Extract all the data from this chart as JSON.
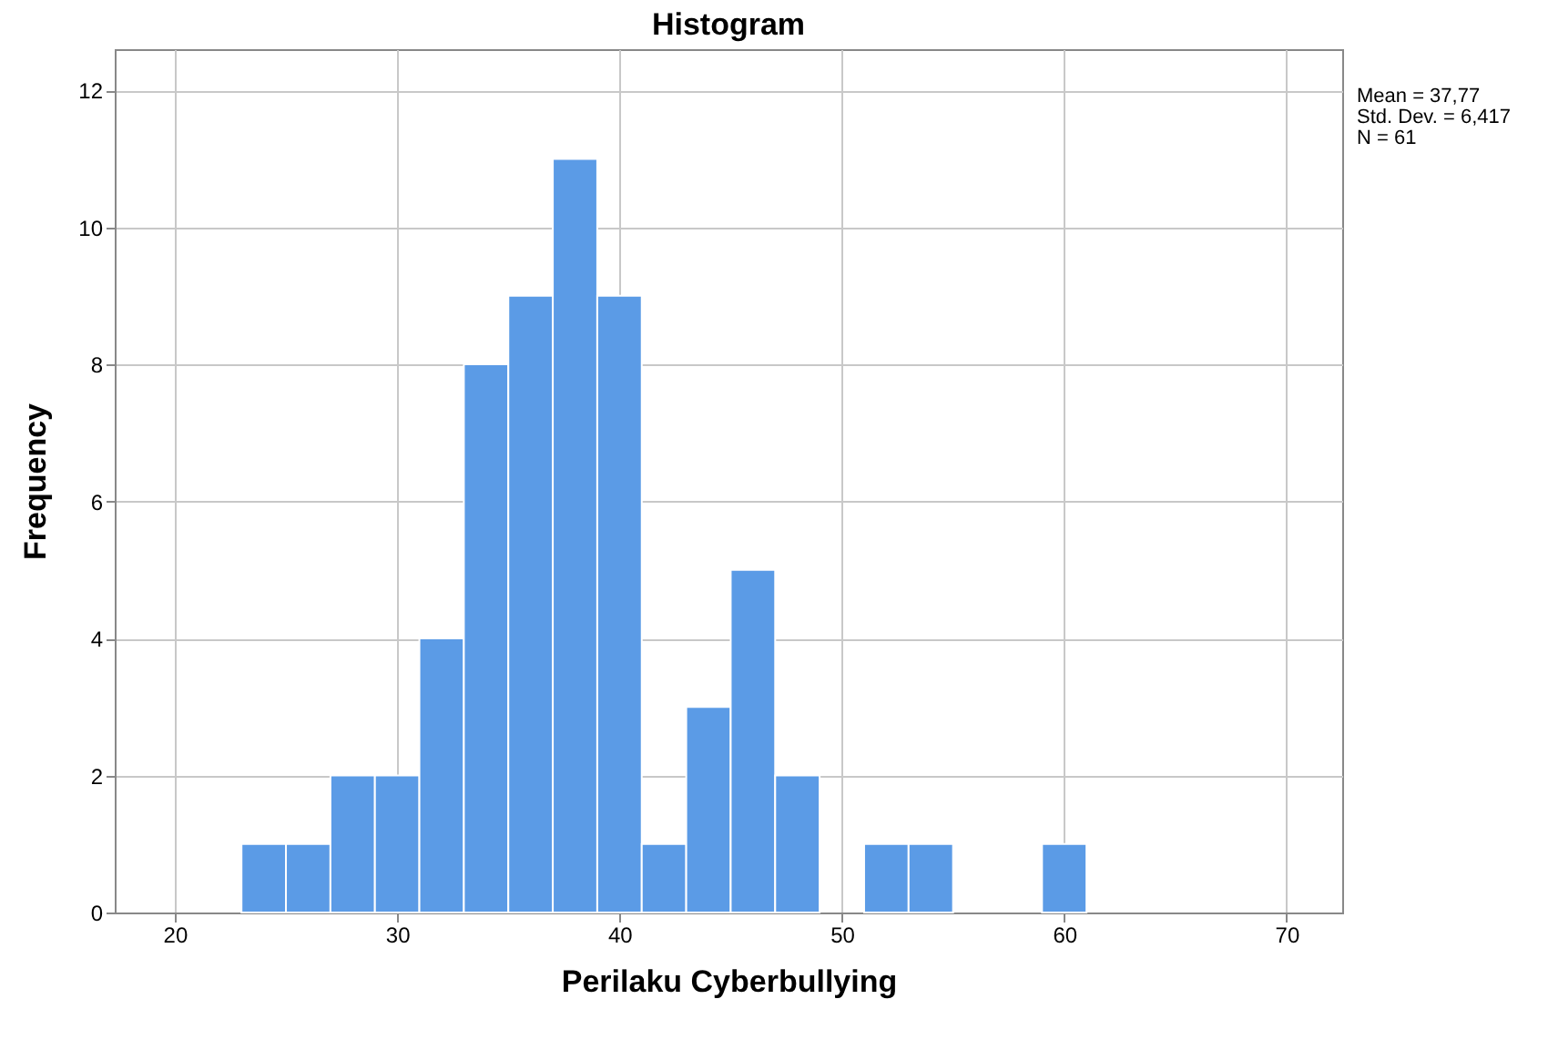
{
  "chart_data": {
    "type": "histogram",
    "title": "Histogram",
    "xlabel": "Perilaku Cyberbullying",
    "ylabel": "Frequency",
    "bins": [
      23,
      25,
      27,
      29,
      31,
      33,
      35,
      37,
      39,
      41,
      43,
      45,
      47,
      49,
      51,
      53,
      55,
      57,
      59,
      61
    ],
    "values": [
      1,
      1,
      2,
      2,
      4,
      8,
      9,
      11,
      9,
      1,
      3,
      5,
      2,
      0,
      1,
      1,
      0,
      0,
      1
    ],
    "color": "#5b9be6",
    "xlim": [
      17.3,
      72.5
    ],
    "xticks": [
      20,
      30,
      40,
      50,
      60,
      70
    ],
    "ylim": [
      0,
      12.6
    ],
    "yticks": [
      0,
      2,
      4,
      6,
      8,
      10,
      12
    ],
    "grid": true,
    "annotations": [
      "Mean = 37,77",
      "Std. Dev. = 6,417",
      "N = 61"
    ]
  }
}
